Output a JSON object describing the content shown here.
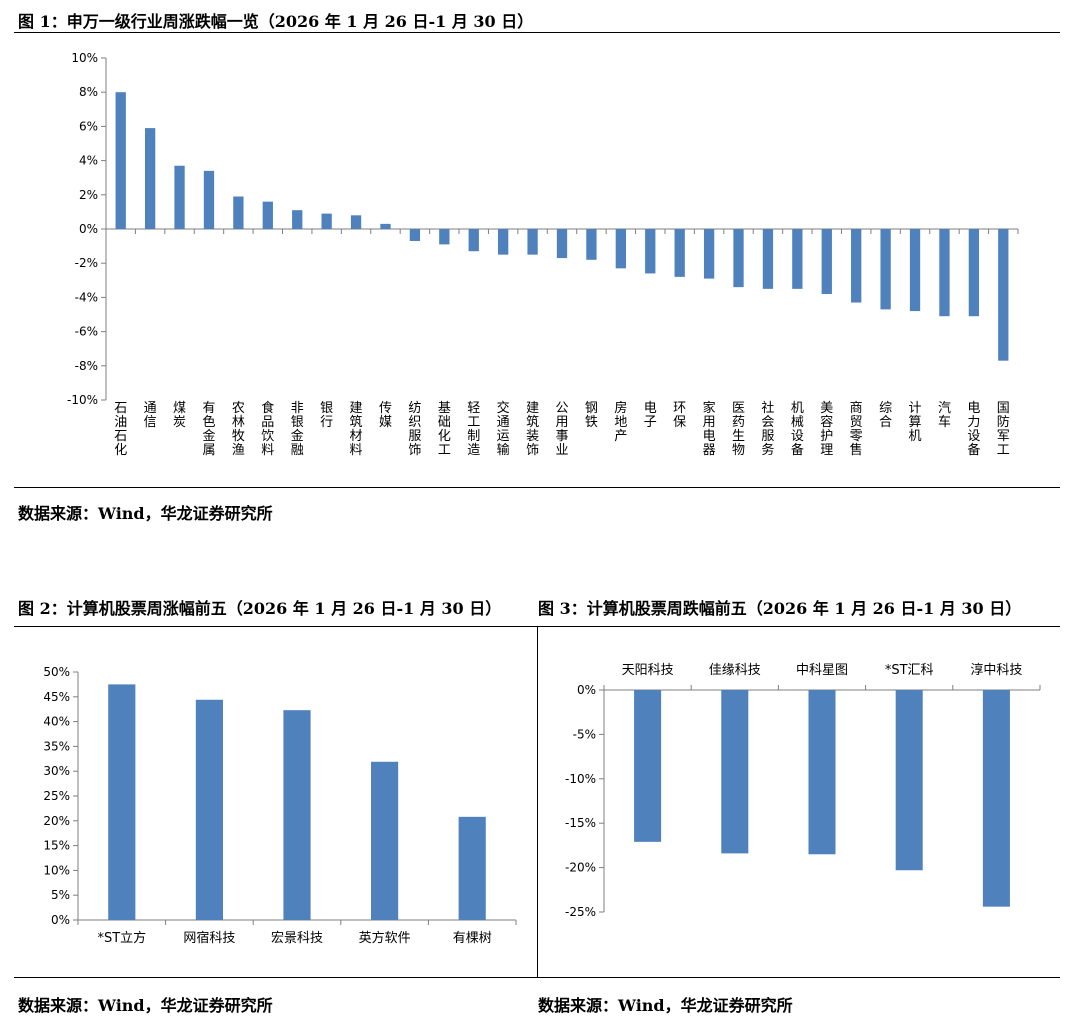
{
  "fig1": {
    "title": "图 1：申万一级行业周涨跌幅一览（2026 年 1 月 26 日-1 月 30 日）",
    "source": "数据来源：Wind，华龙证券研究所"
  },
  "fig2": {
    "title": "图 2：计算机股票周涨幅前五（2026 年 1 月 26 日-1 月 30 日）",
    "source": "数据来源：Wind，华龙证券研究所"
  },
  "fig3": {
    "title": "图 3：计算机股票周跌幅前五（2026 年 1 月 26 日-1 月 30 日）",
    "source": "数据来源：Wind，华龙证券研究所"
  },
  "colors": {
    "bar": "#4f81bd",
    "axis": "#7f7f7f",
    "rule": "#000000"
  },
  "chart_data": [
    {
      "type": "bar",
      "title": "",
      "xlabel": "",
      "ylabel": "",
      "ylim": [
        -10,
        10
      ],
      "ytick_step": 2,
      "tick_suffix": "%",
      "grid": false,
      "legend": "none",
      "categories": [
        "石油石化",
        "通信",
        "煤炭",
        "有色金属",
        "农林牧渔",
        "食品饮料",
        "非银金融",
        "银行",
        "建筑材料",
        "传媒",
        "纺织服饰",
        "基础化工",
        "轻工制造",
        "交通运输",
        "建筑装饰",
        "公用事业",
        "钢铁",
        "房地产",
        "电子",
        "环保",
        "家用电器",
        "医药生物",
        "社会服务",
        "机械设备",
        "美容护理",
        "商贸零售",
        "综合",
        "计算机",
        "汽车",
        "电力设备",
        "国防军工"
      ],
      "values": [
        8.0,
        5.9,
        3.7,
        3.4,
        1.9,
        1.6,
        1.1,
        0.9,
        0.8,
        0.3,
        -0.7,
        -0.9,
        -1.3,
        -1.5,
        -1.5,
        -1.7,
        -1.8,
        -2.3,
        -2.6,
        -2.8,
        -2.9,
        -3.4,
        -3.5,
        -3.5,
        -3.8,
        -4.3,
        -4.7,
        -4.8,
        -5.1,
        -5.1,
        -7.7
      ]
    },
    {
      "type": "bar",
      "title": "",
      "xlabel": "",
      "ylabel": "",
      "ylim": [
        0,
        50
      ],
      "ytick_step": 5,
      "tick_suffix": "%",
      "grid": false,
      "legend": "none",
      "categories": [
        "*ST立方",
        "网宿科技",
        "宏景科技",
        "英方软件",
        "有棵树"
      ],
      "values": [
        47.5,
        44.4,
        42.3,
        31.9,
        20.8
      ]
    },
    {
      "type": "bar",
      "title": "",
      "xlabel": "",
      "ylabel": "",
      "ylim": [
        -25,
        0
      ],
      "ytick_step": 5,
      "tick_suffix": "%",
      "grid": false,
      "legend": "none",
      "categories": [
        "天阳科技",
        "佳缘科技",
        "中科星图",
        "*ST汇科",
        "淳中科技"
      ],
      "values": [
        -17.1,
        -18.4,
        -18.5,
        -20.3,
        -24.4
      ]
    }
  ]
}
